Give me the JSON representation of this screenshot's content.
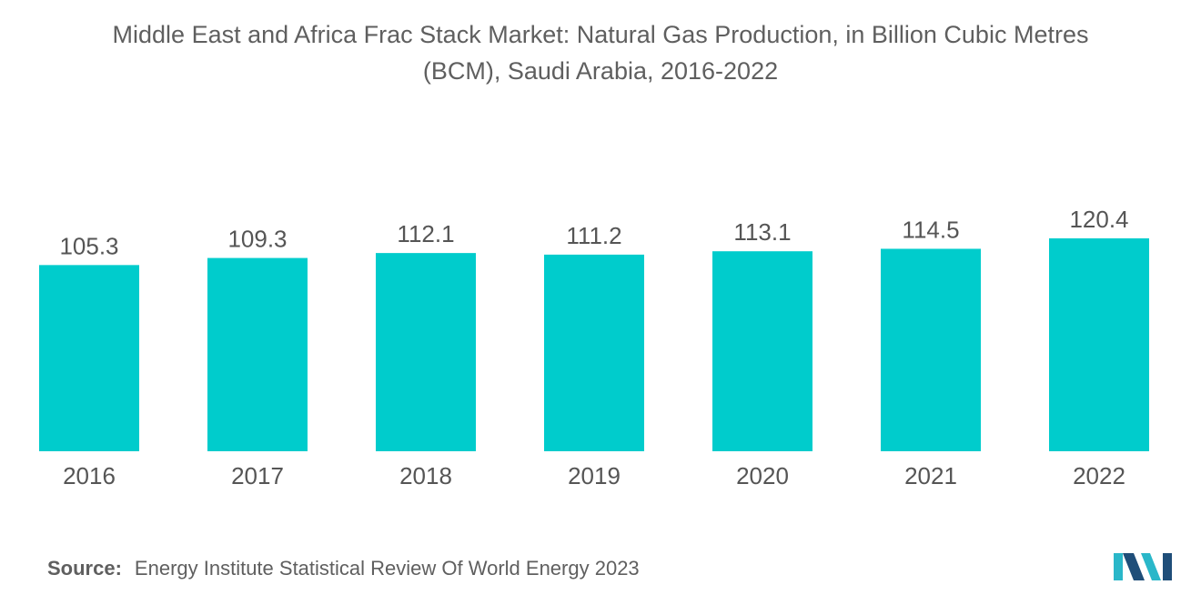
{
  "title_line1": "Middle East and Africa Frac Stack Market: Natural Gas Production, in Billion Cubic Metres",
  "title_line2": "(BCM), Saudi Arabia, 2016-2022",
  "source_label": "Source:",
  "source_text": "Energy Institute Statistical Review Of World Energy 2023",
  "colors": {
    "bar": "#00CCCC",
    "logo_dark": "#1f4e79",
    "logo_light": "#2ab7c9"
  },
  "chart_data": {
    "type": "bar",
    "title": "Middle East and Africa Frac Stack Market: Natural Gas Production, in Billion Cubic Metres (BCM), Saudi Arabia, 2016-2022",
    "categories": [
      "2016",
      "2017",
      "2018",
      "2019",
      "2020",
      "2021",
      "2022"
    ],
    "values": [
      105.3,
      109.3,
      112.1,
      111.2,
      113.1,
      114.5,
      120.4
    ],
    "value_labels": [
      "105.3",
      "109.3",
      "112.1",
      "111.2",
      "113.1",
      "114.5",
      "120.4"
    ],
    "xlabel": "",
    "ylabel": "",
    "ylim": [
      0,
      120.4
    ],
    "grid": false,
    "legend": "none"
  }
}
